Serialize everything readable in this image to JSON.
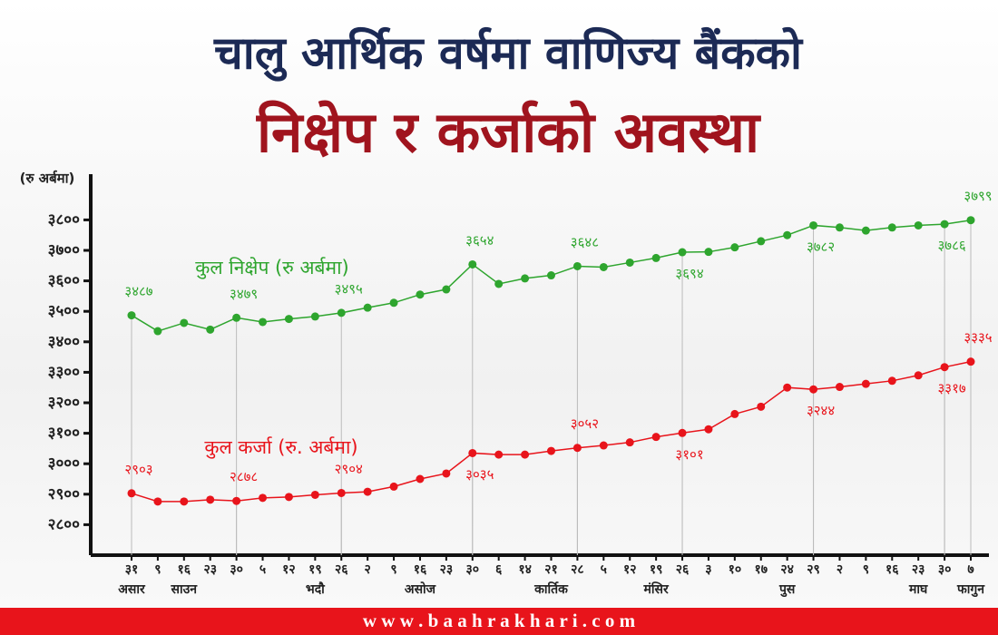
{
  "chart_data": {
    "type": "line",
    "title": "चालु आर्थिक वर्षमा वाणिज्य बैंकको",
    "subtitle": "निक्षेप र कर्जाको अवस्था",
    "y_label": "(रु अर्बमा)",
    "footer": "w w w . b a a h r a k h a r i . c o m",
    "categories": [
      "३१",
      "९",
      "१६",
      "२३",
      "३०",
      "५",
      "१२",
      "१९",
      "२६",
      "२",
      "९",
      "१६",
      "२३",
      "३०",
      "६",
      "१४",
      "२१",
      "२८",
      "५",
      "१२",
      "१९",
      "२६",
      "३",
      "१०",
      "१७",
      "२४",
      "२९",
      "२",
      "९",
      "१६",
      "२३",
      "३०",
      "७"
    ],
    "month_labels": [
      "असार",
      null,
      "साउन",
      null,
      null,
      null,
      null,
      "भदौ",
      null,
      null,
      null,
      "असोज",
      null,
      null,
      null,
      null,
      "कार्तिक",
      null,
      null,
      null,
      "मंसिर",
      null,
      null,
      null,
      null,
      "पुस",
      null,
      null,
      null,
      null,
      "माघ",
      null,
      "फागुन"
    ],
    "ylim": [
      2700,
      3950
    ],
    "yticks": [
      {
        "value": 2800,
        "label": "२८००"
      },
      {
        "value": 2900,
        "label": "२९००"
      },
      {
        "value": 3000,
        "label": "३०००"
      },
      {
        "value": 3100,
        "label": "३१००"
      },
      {
        "value": 3200,
        "label": "३२००"
      },
      {
        "value": 3300,
        "label": "३३००"
      },
      {
        "value": 3400,
        "label": "३४००"
      },
      {
        "value": 3500,
        "label": "३५००"
      },
      {
        "value": 3600,
        "label": "३६००"
      },
      {
        "value": 3700,
        "label": "३७००"
      },
      {
        "value": 3800,
        "label": "३८००"
      }
    ],
    "series": [
      {
        "name": "कुल निक्षेप (रु अर्बमा)",
        "color": "#2ea52e",
        "values": [
          3487,
          3435,
          3462,
          3440,
          3479,
          3465,
          3475,
          3483,
          3495,
          3512,
          3528,
          3555,
          3572,
          3654,
          3590,
          3608,
          3618,
          3648,
          3645,
          3660,
          3675,
          3694,
          3695,
          3710,
          3730,
          3750,
          3782,
          3775,
          3765,
          3775,
          3782,
          3786,
          3799
        ],
        "value_labels": [
          "३४८७",
          null,
          null,
          null,
          "३४७९",
          null,
          null,
          null,
          "३४९५",
          null,
          null,
          null,
          null,
          "३६५४",
          null,
          null,
          null,
          "३६४८",
          null,
          null,
          null,
          "३६९४",
          null,
          null,
          null,
          null,
          "३७८२",
          null,
          null,
          null,
          null,
          "३७८६",
          "३७९९"
        ]
      },
      {
        "name": "कुल कर्जा (रु. अर्बमा)",
        "color": "#e8141b",
        "values": [
          2903,
          2876,
          2876,
          2882,
          2878,
          2888,
          2891,
          2898,
          2904,
          2908,
          2925,
          2950,
          2968,
          3035,
          3030,
          3030,
          3042,
          3052,
          3060,
          3070,
          3088,
          3101,
          3113,
          3163,
          3187,
          3250,
          3244,
          3252,
          3262,
          3272,
          3290,
          3317,
          3335
        ],
        "value_labels": [
          "२९०३",
          null,
          null,
          null,
          "२८७८",
          null,
          null,
          null,
          "२९०४",
          null,
          null,
          null,
          null,
          "३०३५",
          null,
          null,
          null,
          "३०५२",
          null,
          null,
          null,
          "३१०१",
          null,
          null,
          null,
          null,
          "३२४४",
          null,
          null,
          null,
          null,
          "३३१७",
          "३३३५"
        ]
      }
    ]
  }
}
